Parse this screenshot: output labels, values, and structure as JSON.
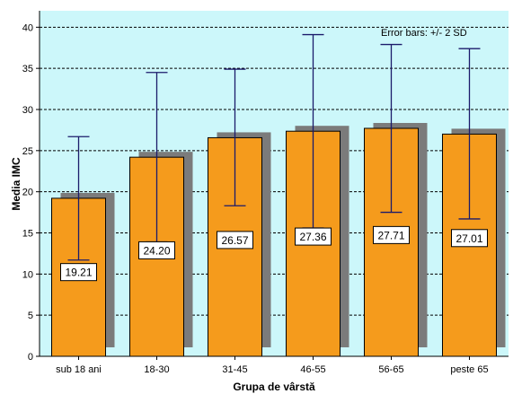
{
  "chart_data": {
    "type": "bar",
    "categories": [
      "sub 18 ani",
      "18-30",
      "31-45",
      "46-55",
      "56-65",
      "peste 65"
    ],
    "values": [
      19.21,
      24.2,
      26.57,
      27.36,
      27.71,
      27.01
    ],
    "value_labels": [
      "19.21",
      "24.20",
      "26.57",
      "27.36",
      "27.71",
      "27.01"
    ],
    "error_bars": [
      {
        "low": 11.7,
        "high": 26.7
      },
      {
        "low": 13.9,
        "high": 34.5
      },
      {
        "low": 18.3,
        "high": 34.9
      },
      {
        "low": 15.6,
        "high": 39.1
      },
      {
        "low": 17.5,
        "high": 37.9
      },
      {
        "low": 16.7,
        "high": 37.4
      }
    ],
    "error_note": "Error bars: +/- 2 SD",
    "xlabel": "Grupa de vârstă",
    "ylabel": "Media IMC",
    "ylim": [
      0,
      42
    ],
    "yticks": [
      0,
      5,
      10,
      15,
      20,
      25,
      30,
      35,
      40
    ],
    "grid": true,
    "colors": {
      "plot_bg": "#ccf7fa",
      "bar": "#f59b1c",
      "shadow": "#7b7b7b",
      "error": "#1b1b6b",
      "grid": "#000000"
    }
  }
}
